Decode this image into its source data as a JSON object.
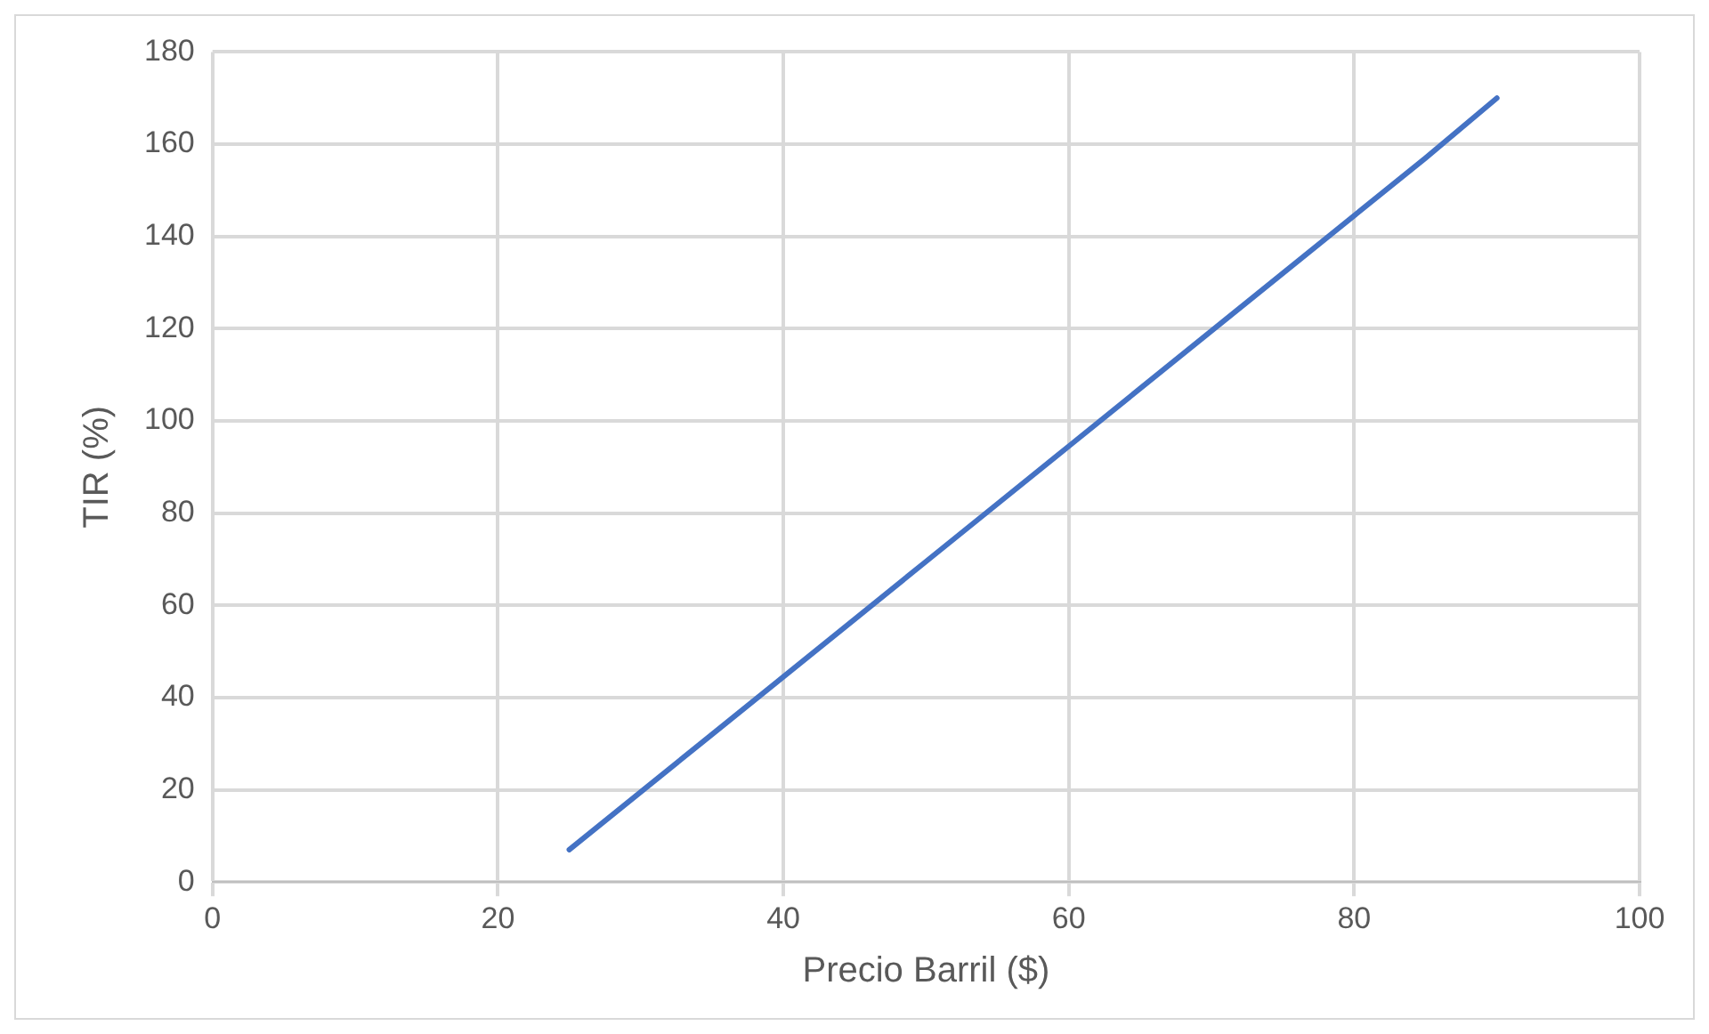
{
  "chart_data": {
    "type": "line",
    "xlabel": "Precio Barril ($)",
    "ylabel": "TIR (%)",
    "series": [
      {
        "color": "#4472c4",
        "x": [
          25,
          30,
          35,
          40,
          45,
          50,
          55,
          60,
          65,
          70,
          75,
          80,
          85,
          90
        ],
        "values": [
          7,
          19.5,
          32,
          44.5,
          57,
          69.5,
          82,
          94.5,
          107,
          119.5,
          132,
          144.5,
          157,
          170
        ]
      }
    ],
    "xlim": [
      0,
      100
    ],
    "xticks": [
      0,
      20,
      40,
      60,
      80,
      100
    ],
    "ylim": [
      0,
      180
    ],
    "yticks": [
      0,
      20,
      40,
      60,
      80,
      100,
      120,
      140,
      160,
      180
    ],
    "grid": true,
    "marker": "none",
    "line_style": "solid",
    "legend": false
  }
}
